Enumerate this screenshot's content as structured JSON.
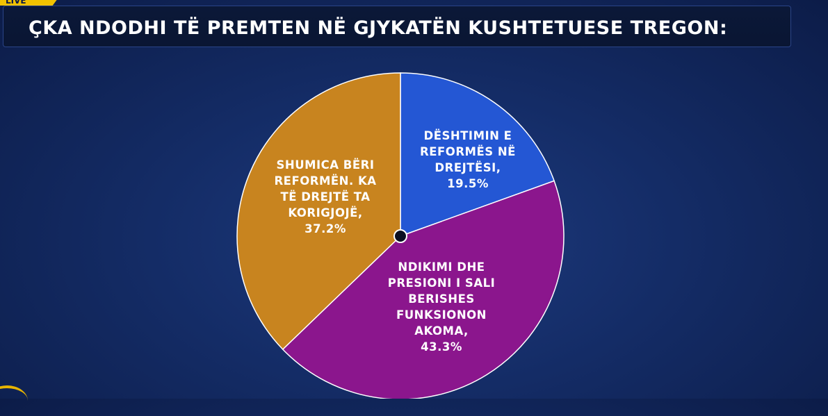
{
  "header": {
    "live_badge": "LIVE",
    "title": "ÇKA NDODHI TË PREMTEN NË GJYKATËN KUSHTETUESE TREGON:"
  },
  "colors": {
    "blue": "#2457d4",
    "purple": "#8b168d",
    "orange": "#c8841f",
    "background": "#142c66"
  },
  "chart_data": {
    "type": "pie",
    "title": "ÇKA NDODHI TË PREMTEN NË GJYKATËN KUSHTETUESE TREGON:",
    "start": "top",
    "direction": "clockwise",
    "slices": [
      {
        "label": "DËSHTIMIN E REFORMËS NË DREJTËSI, 19.5%",
        "lines": [
          "DËSHTIMIN E",
          "REFORMËS NË",
          "DREJTËSI,",
          "19.5%"
        ],
        "value": 19.5,
        "color": "#2457d4"
      },
      {
        "label": "NDIKIMI DHE PRESIONI I SALI BERISHES FUNKSIONON AKOMA, 43.3%",
        "lines": [
          "NDIKIMI DHE",
          "PRESIONI I SALI",
          "BERISHES",
          "FUNKSIONON",
          "AKOMA,",
          "43.3%"
        ],
        "value": 43.3,
        "color": "#8b168d"
      },
      {
        "label": "SHUMICA BËRI REFORMËN. KA TË DREJTË TA KORIGJOJË, 37.2%",
        "lines": [
          "SHUMICA BËRI",
          "REFORMËN. KA",
          "TË DREJTË TA",
          "KORIGJOJË,",
          "37.2%"
        ],
        "value": 37.2,
        "color": "#c8841f"
      }
    ]
  }
}
